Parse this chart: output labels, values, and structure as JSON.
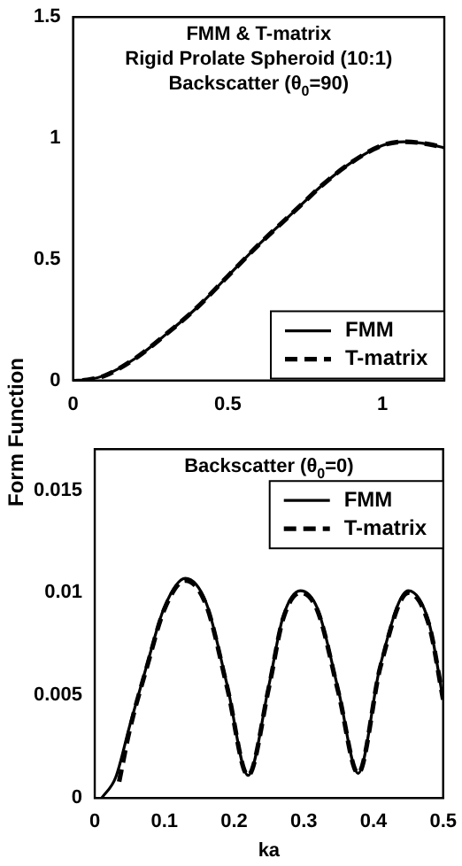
{
  "chart_data": [
    {
      "type": "line",
      "title": "FMM & T-matrix",
      "subtitle": "Rigid Prolate Spheroid (10:1)",
      "annotations": [
        "Backscatter (θ$_{0}$=90)"
      ],
      "ylabel": "Form Function",
      "xlim": [
        0,
        1.2
      ],
      "xticks": [
        0,
        0.5,
        1
      ],
      "ylim": [
        0,
        1.5
      ],
      "yticks": [
        0,
        0.5,
        1,
        1.5
      ],
      "legend": "bottom right",
      "grid": false,
      "series": [
        {
          "name": "FMM",
          "color": "#000000",
          "line_style": "solid",
          "x": [
            0,
            0.05,
            0.1,
            0.2,
            0.3,
            0.4,
            0.5,
            0.6,
            0.7,
            0.75,
            0.8,
            0.9,
            1.0,
            1.07,
            1.15,
            1.2
          ],
          "values": [
            0,
            0.004,
            0.02,
            0.09,
            0.19,
            0.3,
            0.43,
            0.56,
            0.68,
            0.74,
            0.8,
            0.9,
            0.97,
            0.985,
            0.975,
            0.96
          ]
        },
        {
          "name": "T-matrix",
          "color": "#000000",
          "line_style": "dashed",
          "x": [
            0.03,
            0.05,
            0.1,
            0.2,
            0.3,
            0.4,
            0.5,
            0.6,
            0.7,
            0.75,
            0.8,
            0.9,
            1.0,
            1.07,
            1.15,
            1.2
          ],
          "values": [
            0,
            0.003,
            0.018,
            0.09,
            0.19,
            0.3,
            0.43,
            0.56,
            0.68,
            0.74,
            0.8,
            0.9,
            0.97,
            0.985,
            0.975,
            0.96
          ]
        }
      ]
    },
    {
      "type": "line",
      "xlabel": "ka",
      "annotations": [
        "Backscatter (θ$_{0}$=0)"
      ],
      "xlim": [
        0,
        0.5
      ],
      "xticks": [
        0,
        0.1,
        0.2,
        0.3,
        0.4,
        0.5
      ],
      "ylim": [
        0,
        0.017
      ],
      "yticks": [
        0,
        0.005,
        0.01,
        0.015
      ],
      "legend": "top right",
      "grid": false,
      "series": [
        {
          "name": "FMM",
          "color": "#000000",
          "line_style": "solid",
          "x": [
            0.01,
            0.03,
            0.05,
            0.075,
            0.1,
            0.13,
            0.16,
            0.19,
            0.22,
            0.25,
            0.27,
            0.295,
            0.32,
            0.35,
            0.378,
            0.41,
            0.45,
            0.48,
            0.5
          ],
          "values": [
            0,
            0.001,
            0.0035,
            0.0065,
            0.0093,
            0.0107,
            0.0095,
            0.0055,
            0.0011,
            0.0055,
            0.0088,
            0.0101,
            0.0092,
            0.0052,
            0.0012,
            0.0065,
            0.0101,
            0.0085,
            0.0048
          ]
        },
        {
          "name": "T-matrix",
          "color": "#000000",
          "line_style": "dashed",
          "x": [
            0.035,
            0.05,
            0.075,
            0.1,
            0.13,
            0.16,
            0.19,
            0.22,
            0.25,
            0.27,
            0.295,
            0.32,
            0.35,
            0.378,
            0.41,
            0.45,
            0.48,
            0.5
          ],
          "values": [
            0.0008,
            0.0033,
            0.0064,
            0.0092,
            0.0106,
            0.0094,
            0.0054,
            0.0011,
            0.0054,
            0.0087,
            0.01,
            0.0091,
            0.0051,
            0.0012,
            0.0064,
            0.01,
            0.0084,
            0.0048
          ]
        }
      ]
    }
  ]
}
